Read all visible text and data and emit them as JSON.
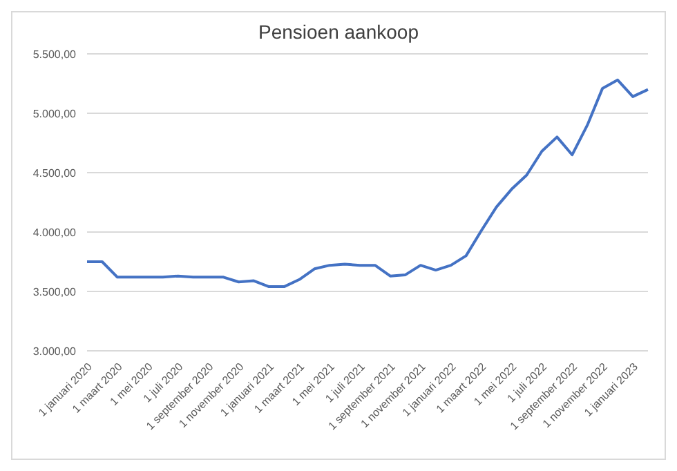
{
  "chart_data": {
    "type": "line",
    "title": "Pensioen aankoop",
    "categories": [
      "1 januari 2020",
      null,
      "1 maart 2020",
      null,
      "1 mei 2020",
      null,
      "1 juli 2020",
      null,
      "1 september 2020",
      null,
      "1 november 2020",
      null,
      "1 januari 2021",
      null,
      "1 maart 2021",
      null,
      "1 mei 2021",
      null,
      "1 juli 2021",
      null,
      "1 september 2021",
      null,
      "1 november 2021",
      null,
      "1 januari 2022",
      null,
      "1 maart 2022",
      null,
      "1 mei 2022",
      null,
      "1 juli 2022",
      null,
      "1 september 2022",
      null,
      "1 november 2022",
      null,
      "1 januari 2023",
      null
    ],
    "series": [
      {
        "color": "#4472c4",
        "values": [
          3750,
          3750,
          3620,
          3620,
          3620,
          3620,
          3630,
          3620,
          3620,
          3620,
          3580,
          3590,
          3540,
          3540,
          3600,
          3690,
          3720,
          3730,
          3720,
          3720,
          3630,
          3640,
          3720,
          3680,
          3720,
          3800,
          4010,
          4210,
          4360,
          4480,
          4680,
          4800,
          4650,
          4900,
          5210,
          5280,
          5140,
          5200
        ]
      }
    ],
    "ylim": [
      3000,
      5500
    ],
    "yticks": [
      {
        "value": 3000,
        "label": "3.000,00"
      },
      {
        "value": 3500,
        "label": "3.500,00"
      },
      {
        "value": 4000,
        "label": "4.000,00"
      },
      {
        "value": 4500,
        "label": "4.500,00"
      },
      {
        "value": 5000,
        "label": "5.000,00"
      },
      {
        "value": 5500,
        "label": "5.500,00"
      }
    ],
    "grid": "y",
    "marker": "none",
    "line_style": "solid",
    "legend": false
  }
}
